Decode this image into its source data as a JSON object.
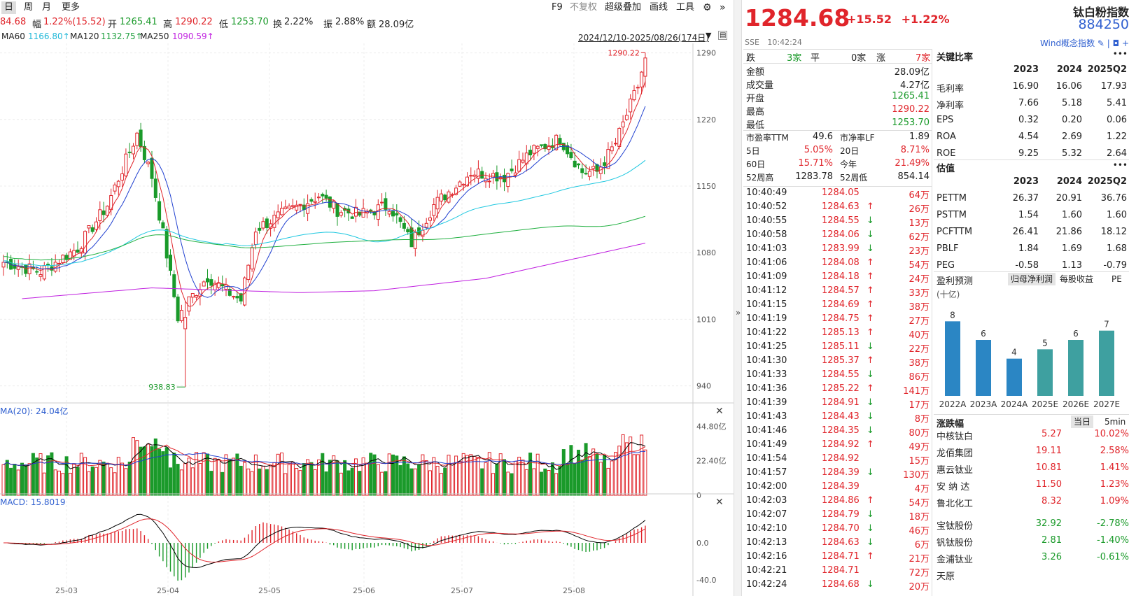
{
  "toolbar": {
    "periods": [
      "日",
      "周",
      "月",
      "更多"
    ],
    "active_period": "日",
    "buttons": [
      "F9",
      "不复权",
      "超级叠加",
      "画线",
      "工具"
    ]
  },
  "quote_line": {
    "last_partial": "84.68",
    "amp_label": "幅",
    "amp_value": "1.22%(15.52)",
    "open_label": "开",
    "open_value": "1265.41",
    "high_label": "高",
    "high_value": "1290.22",
    "low_label": "低",
    "low_value": "1253.70",
    "turnover_label": "换",
    "turnover_value": "2.22%",
    "swing_label": "振",
    "swing_value": "2.88%",
    "amount_label": "额",
    "amount_value": "28.09亿"
  },
  "ma_line": {
    "ma60_label": "MA60",
    "ma60_value": "1166.80↑",
    "ma120_label": "MA120",
    "ma120_value": "1132.75↑",
    "ma250_label": "MA250",
    "ma250_value": "1090.59↑",
    "range": "2024/12/10-2025/08/26(174日)"
  },
  "chart_data": {
    "type": "candlestick",
    "price_axis_ticks": [
      "1290",
      "1220",
      "1150",
      "1080",
      "1010",
      "940"
    ],
    "price_range": [
      925,
      1300
    ],
    "high_label": "1290.22",
    "low_label": "938.83",
    "volume_label": "MA(20): 24.04亿",
    "volume_ticks": [
      "44.80亿",
      "22.40亿",
      "0"
    ],
    "macd_label": "MACD: 15.8019",
    "macd_ticks": [
      "0.0",
      "-40.0"
    ],
    "x_labels": [
      "25-03",
      "25-04",
      "25-05",
      "25-06",
      "25-07",
      "25-08"
    ],
    "series_colors": {
      "up": "#e0252b",
      "down": "#1a9a2a",
      "ma5": "#e0252b",
      "ma10": "#2040d0",
      "ma60": "#20c8e0",
      "ma120": "#20b040",
      "ma250": "#c020e0"
    },
    "close_keypoints": [
      [
        0,
        1070
      ],
      [
        10,
        1060
      ],
      [
        20,
        1085
      ],
      [
        28,
        1130
      ],
      [
        36,
        1205
      ],
      [
        40,
        1160
      ],
      [
        43,
        1100
      ],
      [
        47,
        1012
      ],
      [
        50,
        1030
      ],
      [
        55,
        1055
      ],
      [
        60,
        1040
      ],
      [
        64,
        1030
      ],
      [
        68,
        1105
      ],
      [
        75,
        1120
      ],
      [
        85,
        1140
      ],
      [
        90,
        1125
      ],
      [
        96,
        1120
      ],
      [
        104,
        1130
      ],
      [
        110,
        1090
      ],
      [
        116,
        1130
      ],
      [
        126,
        1165
      ],
      [
        135,
        1160
      ],
      [
        142,
        1185
      ],
      [
        150,
        1200
      ],
      [
        156,
        1165
      ],
      [
        160,
        1165
      ],
      [
        165,
        1195
      ],
      [
        171,
        1255
      ],
      [
        173,
        1284.68
      ]
    ],
    "ma250_keypoints": [
      [
        0,
        1030
      ],
      [
        40,
        1043
      ],
      [
        80,
        1038
      ],
      [
        100,
        1040
      ],
      [
        130,
        1053
      ],
      [
        173,
        1090
      ]
    ]
  },
  "quote": {
    "price": "1284.68",
    "change": "+15.52",
    "change_pct": "+1.22%",
    "exchange": "SSE",
    "time": "10:42:24",
    "name": "钛白粉指数",
    "code": "884250",
    "wind_link": "Wind概念指数 ✎ | ◘ +"
  },
  "breadth": {
    "down_label": "跌",
    "down_value": "3家",
    "flat_label": "平",
    "flat_value": "0家",
    "up_label": "涨",
    "up_value": "7家"
  },
  "stats": [
    {
      "label": "金额",
      "value": "28.09亿",
      "color": "#222"
    },
    {
      "label": "成交量",
      "value": "4.27亿",
      "color": "#222"
    },
    {
      "label": "开盘",
      "value": "1265.41",
      "color": "#1a9a2a"
    },
    {
      "label": "最高",
      "value": "1290.22",
      "color": "#e0252b"
    },
    {
      "label": "最低",
      "value": "1253.70",
      "color": "#1a9a2a"
    }
  ],
  "stats2": [
    {
      "l1": "市盈率TTM",
      "v1": "49.6",
      "c1": "#222",
      "l2": "市净率LF",
      "v2": "1.89",
      "c2": "#222"
    },
    {
      "l1": "5日",
      "v1": "5.05%",
      "c1": "#e0252b",
      "l2": "20日",
      "v2": "8.71%",
      "c2": "#e0252b"
    },
    {
      "l1": "60日",
      "v1": "15.71%",
      "c1": "#e0252b",
      "l2": "今年",
      "v2": "21.49%",
      "c2": "#e0252b"
    },
    {
      "l1": "52周高",
      "v1": "1283.78",
      "c1": "#222",
      "l2": "52周低",
      "v2": "854.14",
      "c2": "#222"
    }
  ],
  "ticks": [
    {
      "t": "10:40:49",
      "p": "1284.05",
      "a": "",
      "v": "64万"
    },
    {
      "t": "10:40:52",
      "p": "1284.63",
      "a": "↑",
      "v": "26万"
    },
    {
      "t": "10:40:55",
      "p": "1284.55",
      "a": "↓",
      "v": "13万"
    },
    {
      "t": "10:40:58",
      "p": "1284.06",
      "a": "↓",
      "v": "62万"
    },
    {
      "t": "10:41:03",
      "p": "1283.99",
      "a": "↓",
      "v": "23万"
    },
    {
      "t": "10:41:06",
      "p": "1284.08",
      "a": "↑",
      "v": "54万"
    },
    {
      "t": "10:41:09",
      "p": "1284.18",
      "a": "↑",
      "v": "24万"
    },
    {
      "t": "10:41:12",
      "p": "1284.57",
      "a": "↑",
      "v": "33万"
    },
    {
      "t": "10:41:15",
      "p": "1284.69",
      "a": "↑",
      "v": "38万"
    },
    {
      "t": "10:41:19",
      "p": "1284.75",
      "a": "↑",
      "v": "27万"
    },
    {
      "t": "10:41:22",
      "p": "1285.13",
      "a": "↑",
      "v": "40万"
    },
    {
      "t": "10:41:25",
      "p": "1285.11",
      "a": "↓",
      "v": "22万"
    },
    {
      "t": "10:41:30",
      "p": "1285.37",
      "a": "↑",
      "v": "38万"
    },
    {
      "t": "10:41:33",
      "p": "1284.55",
      "a": "↓",
      "v": "86万"
    },
    {
      "t": "10:41:36",
      "p": "1285.22",
      "a": "↑",
      "v": "141万"
    },
    {
      "t": "10:41:39",
      "p": "1284.91",
      "a": "↓",
      "v": "17万"
    },
    {
      "t": "10:41:43",
      "p": "1284.43",
      "a": "↓",
      "v": "8万"
    },
    {
      "t": "10:41:46",
      "p": "1284.35",
      "a": "↓",
      "v": "80万"
    },
    {
      "t": "10:41:49",
      "p": "1284.92",
      "a": "↑",
      "v": "49万"
    },
    {
      "t": "10:41:54",
      "p": "1284.92",
      "a": "",
      "v": "15万"
    },
    {
      "t": "10:41:57",
      "p": "1284.39",
      "a": "↓",
      "v": "130万"
    },
    {
      "t": "10:42:00",
      "p": "1284.39",
      "a": "",
      "v": "4万"
    },
    {
      "t": "10:42:03",
      "p": "1284.86",
      "a": "↑",
      "v": "54万"
    },
    {
      "t": "10:42:07",
      "p": "1284.79",
      "a": "↓",
      "v": "18万"
    },
    {
      "t": "10:42:10",
      "p": "1284.70",
      "a": "↓",
      "v": "46万"
    },
    {
      "t": "10:42:13",
      "p": "1284.63",
      "a": "↓",
      "v": "6万"
    },
    {
      "t": "10:42:16",
      "p": "1284.71",
      "a": "↑",
      "v": "21万"
    },
    {
      "t": "10:42:21",
      "p": "1284.71",
      "a": "",
      "v": "72万"
    },
    {
      "t": "10:42:24",
      "p": "1284.68",
      "a": "↓",
      "v": "20万"
    }
  ],
  "ratios": {
    "title": "关键比率",
    "years": [
      "2023",
      "2024",
      "2025Q2"
    ],
    "rows": [
      {
        "label": "毛利率",
        "v": [
          "16.90",
          "16.06",
          "17.93"
        ]
      },
      {
        "label": "净利率",
        "v": [
          "7.66",
          "5.18",
          "5.41"
        ]
      },
      {
        "label": "EPS",
        "v": [
          "0.32",
          "0.20",
          "0.06"
        ]
      },
      {
        "label": "ROA",
        "v": [
          "4.54",
          "2.69",
          "1.22"
        ]
      },
      {
        "label": "ROE",
        "v": [
          "9.25",
          "5.32",
          "2.64"
        ]
      }
    ]
  },
  "valuation": {
    "title": "估值",
    "years": [
      "2023",
      "2024",
      "2025Q2"
    ],
    "rows": [
      {
        "label": "PETTM",
        "v": [
          "26.37",
          "20.91",
          "36.76"
        ]
      },
      {
        "label": "PSTTM",
        "v": [
          "1.54",
          "1.60",
          "1.60"
        ]
      },
      {
        "label": "PCFTTM",
        "v": [
          "26.41",
          "21.86",
          "18.12"
        ]
      },
      {
        "label": "PBLF",
        "v": [
          "1.84",
          "1.69",
          "1.68"
        ]
      },
      {
        "label": "PEG",
        "v": [
          "-0.58",
          "1.13",
          "-0.79"
        ]
      }
    ]
  },
  "forecast": {
    "title": "盈利预测",
    "tabs": [
      "归母净利润",
      "每股收益",
      "PE"
    ],
    "unit": "(十亿)",
    "bars": [
      {
        "label": "2022A",
        "value": 8,
        "text": "8",
        "color": "#2b86c4"
      },
      {
        "label": "2023A",
        "value": 6,
        "text": "6",
        "color": "#2b86c4"
      },
      {
        "label": "2024A",
        "value": 4,
        "text": "4",
        "color": "#2b86c4"
      },
      {
        "label": "2025E",
        "value": 5,
        "text": "5",
        "color": "#3ea0a0"
      },
      {
        "label": "2026E",
        "value": 6,
        "text": "6",
        "color": "#3ea0a0"
      },
      {
        "label": "2027E",
        "value": 7,
        "text": "7",
        "color": "#3ea0a0"
      }
    ]
  },
  "movers": {
    "title": "涨跌幅",
    "tabs": [
      "当日",
      "5min"
    ],
    "rows": [
      {
        "name": "中核钛白",
        "price": "5.27",
        "pct": "10.02%",
        "color": "#e0252b"
      },
      {
        "name": "龙佰集团",
        "price": "19.11",
        "pct": "2.58%",
        "color": "#e0252b"
      },
      {
        "name": "惠云钛业",
        "price": "10.81",
        "pct": "1.41%",
        "color": "#e0252b"
      },
      {
        "name": "安 纳 达",
        "price": "11.50",
        "pct": "1.23%",
        "color": "#e0252b"
      },
      {
        "name": "鲁北化工",
        "price": "8.32",
        "pct": "1.09%",
        "color": "#e0252b"
      },
      {
        "name": "宝钛股份",
        "price": "32.92",
        "pct": "-2.78%",
        "color": "#1a9a2a"
      },
      {
        "name": "钒钛股份",
        "price": "2.81",
        "pct": "-1.40%",
        "color": "#1a9a2a"
      },
      {
        "name": "金浦钛业",
        "price": "3.26",
        "pct": "-0.61%",
        "color": "#1a9a2a"
      },
      {
        "name": "天原",
        "price": "",
        "pct": "",
        "color": "#222"
      }
    ]
  }
}
